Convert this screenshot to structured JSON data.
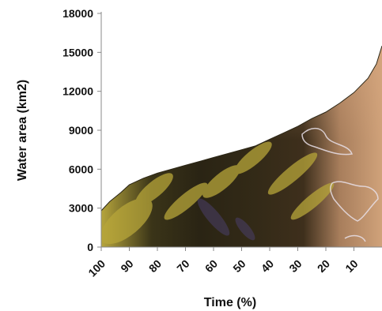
{
  "chart_data": {
    "type": "area",
    "title": "",
    "xlabel": "Time (%)",
    "ylabel": "Water area (km2)",
    "xlim": [
      100,
      0
    ],
    "ylim": [
      0,
      18000
    ],
    "grid": false,
    "x_ticks": [
      "100",
      "90",
      "80",
      "70",
      "60",
      "50",
      "40",
      "30",
      "20",
      "10"
    ],
    "y_ticks": [
      "0",
      "3000",
      "6000",
      "9000",
      "12000",
      "15000",
      "18000"
    ],
    "x": [
      100,
      97,
      93,
      90,
      85,
      80,
      75,
      70,
      65,
      60,
      55,
      50,
      45,
      40,
      35,
      30,
      25,
      20,
      15,
      10,
      5,
      2,
      0
    ],
    "values": [
      2800,
      3500,
      4200,
      4800,
      5300,
      5700,
      6000,
      6300,
      6600,
      6900,
      7200,
      7500,
      7800,
      8300,
      8800,
      9300,
      9900,
      10400,
      11100,
      11900,
      13000,
      14100,
      15500
    ],
    "fill": "Landsat satellite image texture",
    "colors": {
      "water_dark": "#2b2616",
      "vegetation_yellow": "#b8a83a",
      "land_tan": "#c79a6e",
      "axis": "#888888"
    }
  }
}
